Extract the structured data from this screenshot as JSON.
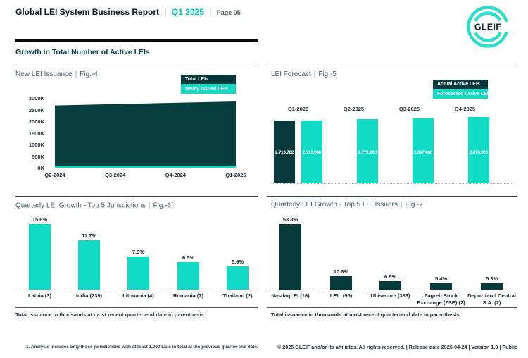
{
  "ui": {
    "sep": "|"
  },
  "header": {
    "brand": "Global LEI System Business Report",
    "period": "Q1 2025",
    "page": "Page 05",
    "logo_text": "GLEIF"
  },
  "section": {
    "title": "Growth in Total Number of Active LEIs"
  },
  "theme": {
    "teal": "#12DBC5",
    "dark": "#073B3B",
    "legend_dark": "#04383A",
    "area_dark": "#063E3D",
    "logo_teal": "#2BDFCB",
    "teal_text": "#00CEBB",
    "black": "#0A0A0A"
  },
  "charts": {
    "issuance": {
      "title": "New LEI Issuance",
      "fig": "Fig.-4",
      "legend": [
        {
          "label": "Total LEIs",
          "color": "dark"
        },
        {
          "label": "Newly Issued LEIs",
          "color": "teal"
        }
      ]
    },
    "forecast": {
      "title": "LEI Forecast",
      "fig": "Fig.-5",
      "legend": [
        {
          "label": "Actual Active LEIs",
          "color": "dark"
        },
        {
          "label": "Forecasted Active LEIs",
          "color": "teal"
        }
      ]
    },
    "jurisdictions": {
      "title": "Quarterly LEI Growth - Top 5 Jurisdictions",
      "fig": "Fig.-6",
      "fig_superscript": "1",
      "footnote": "Total issuance in thousands at most recent quarter-end date in parenthesis"
    },
    "issuers": {
      "title": "Quarterly LEI Growth - Top 5 LEI Issuers",
      "fig": "Fig.-7",
      "footnote": "Total issuance in thousands at most recent quarter-end date in parenthesis"
    }
  },
  "chart_data": [
    {
      "id": "fig4",
      "type": "area",
      "title": "New LEI Issuance | Fig.-4",
      "categories": [
        "Q2-2024",
        "Q3-2024",
        "Q4-2024",
        "Q1-2025"
      ],
      "series": [
        {
          "name": "Total LEIs",
          "values": [
            2680,
            2735,
            2790,
            2850
          ],
          "unit": "K"
        },
        {
          "name": "Newly Issued LEIs",
          "values": [
            90,
            90,
            90,
            90
          ],
          "unit": "K"
        }
      ],
      "ylim": [
        0,
        3000
      ],
      "yticks": [
        "3000K",
        "2500K",
        "2000K",
        "1500K",
        "1000K",
        "500K",
        "0K"
      ],
      "legend_position": "top-right",
      "grid": false
    },
    {
      "id": "fig5",
      "type": "bar",
      "title": "LEI Forecast | Fig.-5",
      "categories": [
        "Q1-2025",
        "Q2-2025",
        "Q3-2025",
        "Q4-2025"
      ],
      "series": [
        {
          "name": "Actual Active LEIs",
          "values": [
            2713702,
            null,
            null,
            null
          ],
          "labels": [
            "2,713,702",
            "",
            "",
            ""
          ]
        },
        {
          "name": "Forecasted Active LEIs",
          "values": [
            2713000,
            2771000,
            2817000,
            2878000
          ],
          "labels": [
            "2,713,000",
            "2,771,000",
            "2,817,000",
            "2,878,000"
          ]
        }
      ],
      "category_label_position": "top",
      "legend_position": "top-right",
      "grid": false
    },
    {
      "id": "fig6",
      "type": "bar",
      "title": "Quarterly LEI Growth - Top 5 Jurisdictions | Fig.-6",
      "categories": [
        "Latvia (3)",
        "India (239)",
        "Lithuania (4)",
        "Romania (7)",
        "Thailand (2)"
      ],
      "values": [
        15.6,
        11.7,
        7.9,
        6.5,
        5.6
      ],
      "labels": [
        "15.6%",
        "11.7%",
        "7.9%",
        "6.5%",
        "5.6%"
      ],
      "unit": "%",
      "grid": false
    },
    {
      "id": "fig7",
      "type": "bar",
      "title": "Quarterly LEI Growth - Top 5 LEI Issuers | Fig.-7",
      "categories": [
        "NasdaqLEI (16)",
        "LEIL (95)",
        "Ubisecure (383)",
        "Zagreb Stock Exchange (ZSE) (2)",
        "Depozitarul Central S.A. (2)"
      ],
      "values": [
        53.8,
        10.8,
        6.9,
        5.4,
        5.3
      ],
      "labels": [
        "53.8%",
        "10.8%",
        "6.9%",
        "5.4%",
        "5.3%"
      ],
      "unit": "%",
      "grid": false
    }
  ],
  "footer": {
    "footnote": "1. Analysis includes only those jurisdictions with at least 1,000 LEIs in total at the previous quarter-end date.",
    "copyright": "© 2025 GLEIF and/or its affiliates. All rights reserved. | Release date 2025-04-24 | Version 1.0 | Public"
  }
}
